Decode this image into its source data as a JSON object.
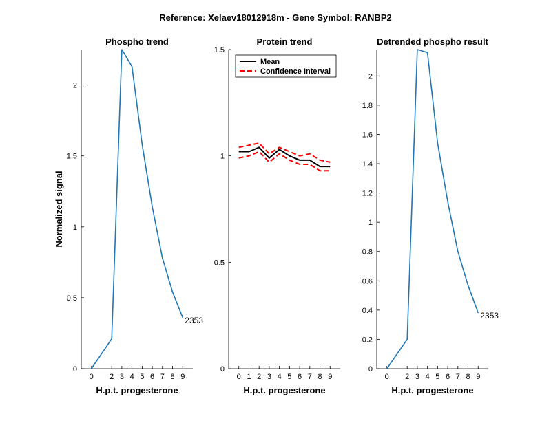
{
  "figure": {
    "suptitle": "Reference:  Xelaev18012918m - Gene Symbol:  RANBP2"
  },
  "colors": {
    "phospho": "#1f77b4",
    "mean": "#000000",
    "ci": "#ff0000"
  },
  "chart_data": [
    {
      "type": "line",
      "title": "Phospho trend",
      "xlabel": "H.p.t. progesterone",
      "ylabel": "Normalized signal",
      "xlim": [
        -1,
        10
      ],
      "ylim": [
        0,
        2.25
      ],
      "xticks": [
        0,
        2,
        3,
        4,
        5,
        6,
        7,
        8,
        9
      ],
      "yticks": [
        0,
        0.5,
        1,
        1.5,
        2
      ],
      "ytick_labels": [
        "0",
        "0.5",
        "1",
        "1.5",
        "2"
      ],
      "series": [
        {
          "x": [
            0,
            2,
            3,
            4,
            5,
            6,
            7,
            8,
            9
          ],
          "values": [
            0,
            0.21,
            2.25,
            2.13,
            1.58,
            1.14,
            0.78,
            0.54,
            0.36
          ]
        }
      ],
      "annotation": {
        "text": "2353",
        "x": 9,
        "y": 0.36
      }
    },
    {
      "type": "line",
      "title": "Protein trend",
      "xlabel": "H.p.t. progesterone",
      "xlim": [
        -1,
        10
      ],
      "ylim": [
        0,
        1.5
      ],
      "xticks": [
        0,
        1,
        2,
        3,
        4,
        5,
        6,
        7,
        8,
        9
      ],
      "yticks": [
        0,
        0.5,
        1,
        1.5
      ],
      "ytick_labels": [
        "0",
        "0.5",
        "1",
        "1.5"
      ],
      "legend": {
        "position": "top-left",
        "entries": [
          "Mean",
          "Confidence Interval"
        ]
      },
      "series": [
        {
          "name": "Mean",
          "x": [
            0,
            1,
            2,
            3,
            4,
            5,
            6,
            7,
            8,
            9
          ],
          "values": [
            1.02,
            1.02,
            1.04,
            0.99,
            1.03,
            1.0,
            0.98,
            0.98,
            0.95,
            0.95
          ]
        },
        {
          "name": "Confidence Interval",
          "x": [
            0,
            1,
            2,
            3,
            4,
            5,
            6,
            7,
            8,
            9
          ],
          "values": [
            1.04,
            1.05,
            1.06,
            1.01,
            1.04,
            1.02,
            1.0,
            1.01,
            0.98,
            0.97
          ]
        },
        {
          "name": "Confidence Interval",
          "x": [
            0,
            1,
            2,
            3,
            4,
            5,
            6,
            7,
            8,
            9
          ],
          "values": [
            0.99,
            1.0,
            1.02,
            0.97,
            1.01,
            0.98,
            0.96,
            0.96,
            0.93,
            0.93
          ]
        }
      ]
    },
    {
      "type": "line",
      "title": "Detrended phospho result",
      "xlabel": "H.p.t. progesterone",
      "xlim": [
        -1,
        10
      ],
      "ylim": [
        0,
        2.18
      ],
      "xticks": [
        0,
        2,
        3,
        4,
        5,
        6,
        7,
        8,
        9
      ],
      "yticks": [
        0,
        0.2,
        0.4,
        0.6,
        0.8,
        1,
        1.2,
        1.4,
        1.6,
        1.8,
        2
      ],
      "ytick_labels": [
        "0",
        "0.2",
        "0.4",
        "0.6",
        "0.8",
        "1",
        "1.2",
        "1.4",
        "1.6",
        "1.8",
        "2"
      ],
      "series": [
        {
          "x": [
            0,
            2,
            3,
            4,
            5,
            6,
            7,
            8,
            9
          ],
          "values": [
            0,
            0.2,
            2.18,
            2.16,
            1.54,
            1.14,
            0.8,
            0.57,
            0.38
          ]
        }
      ],
      "annotation": {
        "text": "2353",
        "x": 9,
        "y": 0.38
      }
    }
  ]
}
